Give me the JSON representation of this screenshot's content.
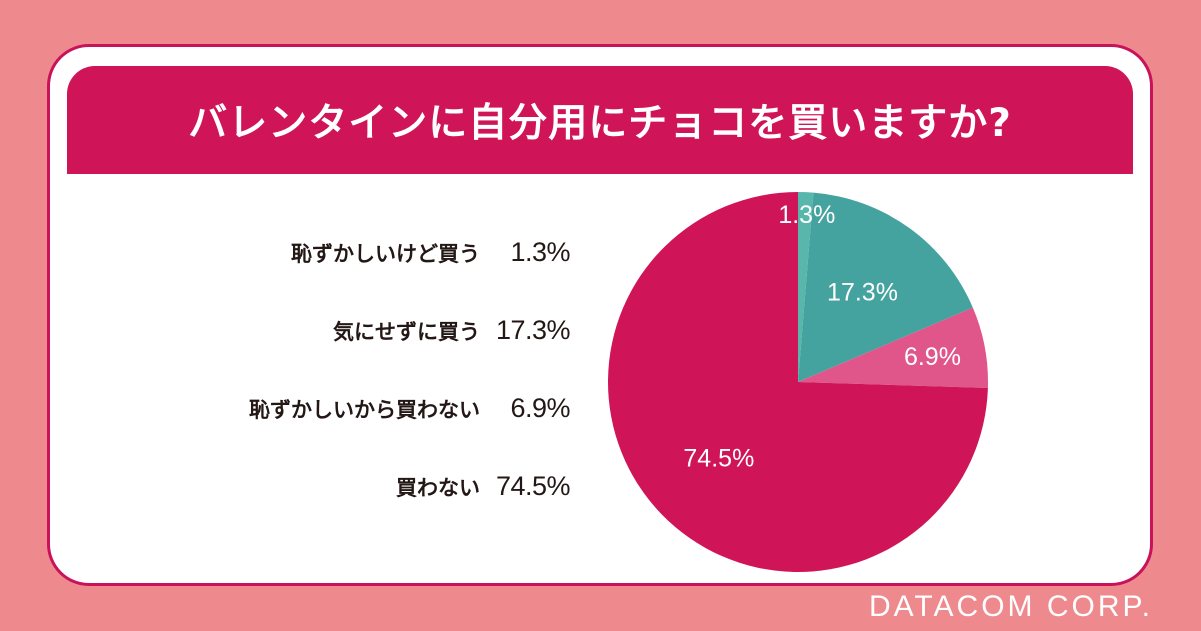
{
  "chart_data": {
    "type": "pie",
    "title": "バレンタインに自分用にチョコを買いますか?",
    "unit": "%",
    "slices": [
      {
        "label": "恥ずかしいけど買う",
        "value": 1.3,
        "display": "1.3%",
        "color": "#58b6ad"
      },
      {
        "label": "気にせずに買う",
        "value": 17.3,
        "display": "17.3%",
        "color": "#45a39f"
      },
      {
        "label": "恥ずかしいから買わない",
        "value": 6.9,
        "display": "6.9%",
        "color": "#e0568a"
      },
      {
        "label": "買わない",
        "value": 74.5,
        "display": "74.5%",
        "color": "#cf1558"
      }
    ],
    "start_angle": "12 o'clock",
    "direction": "clockwise",
    "legend_position": "left"
  },
  "footer": {
    "credit": "DATACOM CORP."
  },
  "colors": {
    "background": "#ee8a8e",
    "accent": "#cf1558",
    "card": "#ffffff",
    "text": "#231815"
  }
}
